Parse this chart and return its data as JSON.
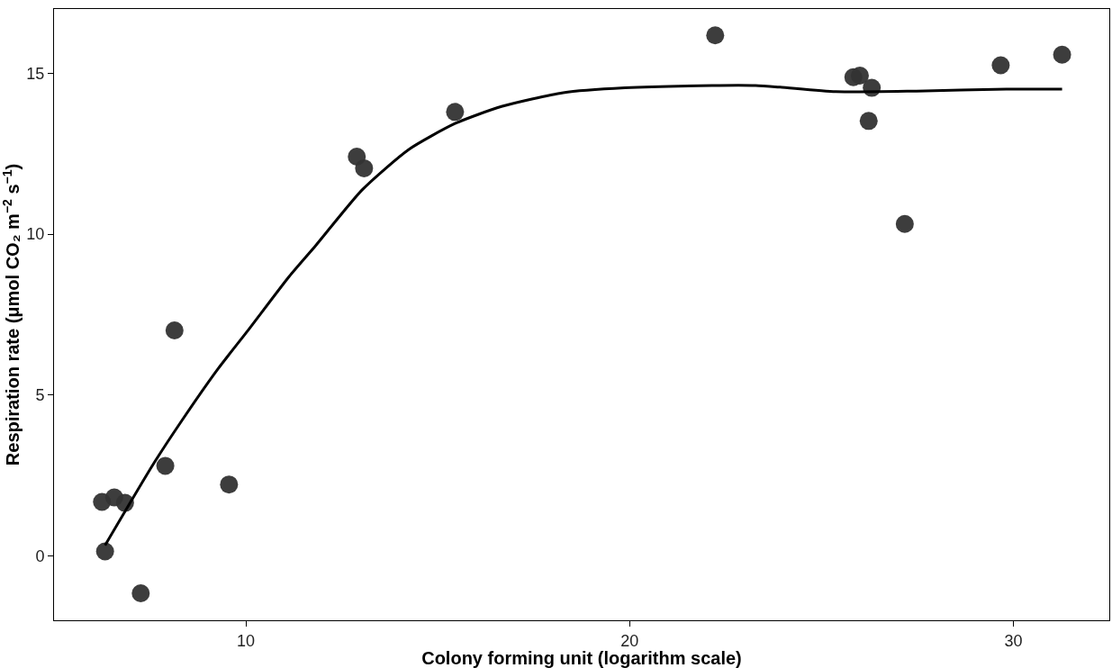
{
  "chart_data": {
    "type": "scatter",
    "xlabel": "Colony forming unit (logarithm scale)",
    "ylabel": "Respiration rate (μmol CO₂ m$^{−2}$ s$^{−1}$)",
    "xlim": [
      5.0,
      32.5
    ],
    "ylim": [
      -2.0,
      17.0
    ],
    "xticks": [
      10,
      20,
      30
    ],
    "yticks": [
      0,
      5,
      10,
      15
    ],
    "marker": "circle",
    "series": [
      {
        "color": "#333333",
        "x": [
          6.25,
          6.57,
          6.85,
          6.33,
          7.26,
          7.9,
          8.14,
          9.56,
          12.89,
          13.08,
          15.45,
          22.23,
          25.83,
          26.0,
          26.31,
          26.23,
          27.17,
          29.67,
          31.27
        ],
        "values": [
          1.68,
          1.82,
          1.65,
          0.14,
          -1.16,
          2.8,
          7.01,
          2.22,
          12.41,
          12.05,
          13.8,
          16.18,
          14.88,
          14.93,
          14.55,
          13.52,
          10.32,
          15.25,
          15.58
        ]
      },
      {
        "type": "line",
        "color": "#000000",
        "line_style": "solid",
        "marker": "none",
        "x": [
          6.33,
          7.58,
          8.31,
          9.27,
          10.08,
          11.13,
          11.82,
          13.03,
          14.24,
          15.45,
          16.66,
          18.27,
          19.88,
          22.15,
          23.28,
          23.92,
          25.37,
          27.47,
          29.82,
          31.27
        ],
        "values": [
          0.33,
          2.84,
          4.17,
          5.81,
          7.05,
          8.69,
          9.65,
          11.38,
          12.63,
          13.44,
          13.97,
          14.4,
          14.55,
          14.62,
          14.62,
          14.57,
          14.43,
          14.45,
          14.51,
          14.51
        ]
      }
    ]
  }
}
